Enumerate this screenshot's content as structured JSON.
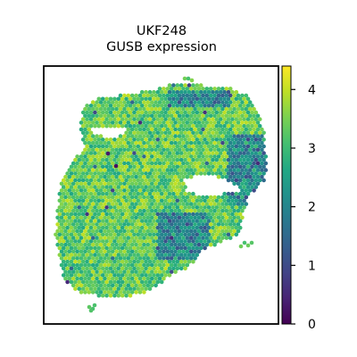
{
  "chart_data": {
    "type": "scatter",
    "subtype": "spatial-transcriptomics-hexbin",
    "title_line1": "UKF248",
    "title_line2": "GUSB expression",
    "xlabel": "",
    "ylabel": "",
    "colorbar": {
      "colormap": "viridis",
      "range": [
        0,
        4.4
      ],
      "ticks": [
        0,
        1,
        2,
        3,
        4
      ]
    },
    "typical_value": 3.3,
    "value_range_in_tissue": [
      0.2,
      4.4
    ],
    "colors": {
      "viridis_low": "#440154",
      "viridis_mid": "#21918c",
      "viridis_high": "#fde725",
      "frame": "#000000",
      "background": "#ffffff"
    }
  }
}
